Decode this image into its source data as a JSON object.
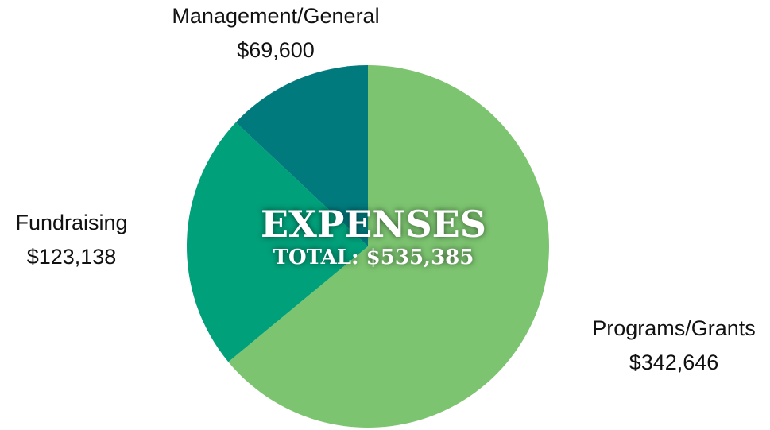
{
  "chart_data": {
    "type": "pie",
    "title": "EXPENSES",
    "subtitle": "TOTAL: $535,385",
    "categories": [
      "Programs/Grants",
      "Fundraising",
      "Management/General"
    ],
    "values": [
      342646,
      123138,
      69600
    ],
    "value_labels": [
      "$342,646",
      "$123,138",
      "$69,600"
    ],
    "colors": [
      "#7cc470",
      "#00a07a",
      "#007a7d"
    ]
  }
}
